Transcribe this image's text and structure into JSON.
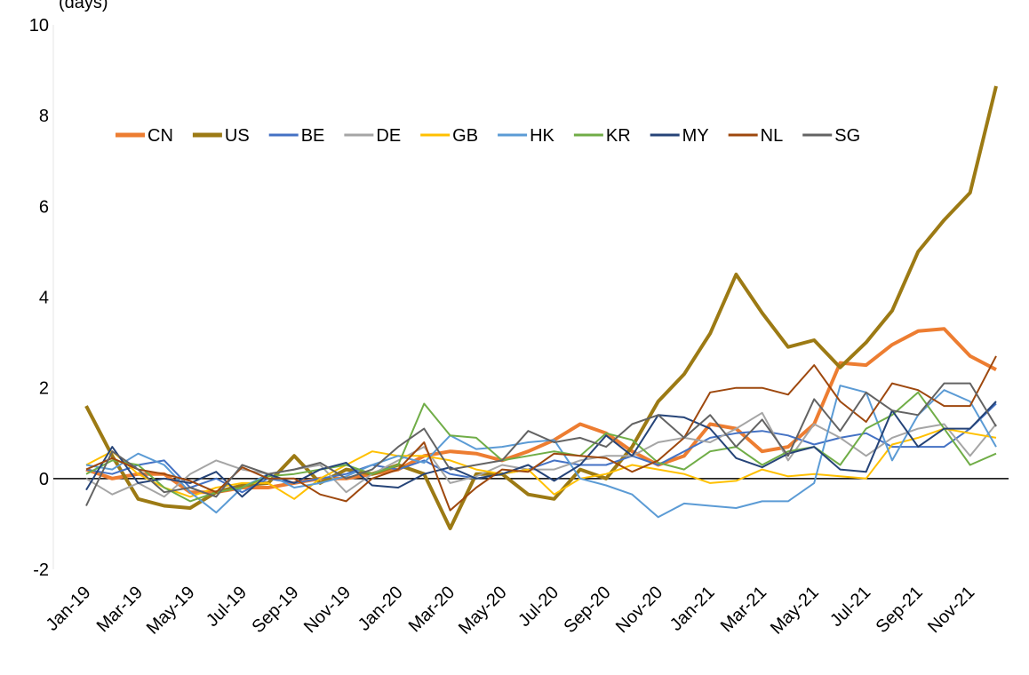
{
  "chart_data": {
    "type": "line",
    "y_label": "(days)",
    "categories": [
      "Jan-19",
      null,
      "Mar-19",
      null,
      "May-19",
      null,
      "Jul-19",
      null,
      "Sep-19",
      null,
      "Nov-19",
      null,
      "Jan-20",
      null,
      "Mar-20",
      null,
      "May-20",
      null,
      "Jul-20",
      null,
      "Sep-20",
      null,
      "Nov-20",
      null,
      "Jan-21",
      null,
      "Mar-21",
      null,
      "May-21",
      null,
      "Jul-21",
      null,
      "Sep-21",
      null,
      "Nov-21",
      null
    ],
    "ylim": [
      -2,
      10
    ],
    "yticks": [
      -2,
      0,
      2,
      4,
      6,
      8,
      10
    ],
    "legend": "top-left",
    "series": [
      {
        "name": "CN",
        "color": "#ed7d31",
        "line_width": 4,
        "values": [
          0.2,
          0.0,
          0.1,
          0.1,
          -0.3,
          -0.3,
          -0.2,
          -0.2,
          -0.1,
          0.0,
          0.0,
          0.1,
          0.2,
          0.5,
          0.6,
          0.55,
          0.4,
          0.6,
          0.85,
          1.2,
          1.0,
          0.6,
          0.3,
          0.5,
          1.2,
          1.1,
          0.6,
          0.7,
          1.2,
          2.55,
          2.5,
          2.95,
          3.25,
          3.3,
          2.7,
          2.4
        ]
      },
      {
        "name": "US",
        "color": "#9c7a14",
        "line_width": 4,
        "values": [
          1.6,
          0.5,
          -0.45,
          -0.6,
          -0.65,
          -0.3,
          -0.15,
          -0.1,
          0.5,
          -0.1,
          0.2,
          0.1,
          0.3,
          0.1,
          -1.1,
          0.1,
          0.1,
          -0.35,
          -0.45,
          0.2,
          0.0,
          0.7,
          1.7,
          2.3,
          3.2,
          4.5,
          3.65,
          2.9,
          3.05,
          2.45,
          3.0,
          3.7,
          5.0,
          5.7,
          6.3,
          8.65
        ]
      },
      {
        "name": "BE",
        "color": "#4472c4",
        "line_width": 2,
        "values": [
          0.2,
          0.1,
          0.3,
          0.4,
          -0.2,
          0.0,
          -0.3,
          0.0,
          -0.1,
          0.0,
          0.1,
          0.3,
          0.2,
          0.4,
          0.1,
          0.0,
          0.1,
          0.2,
          0.4,
          0.3,
          0.3,
          0.5,
          0.3,
          0.6,
          0.9,
          1.0,
          1.05,
          0.95,
          0.75,
          0.9,
          1.0,
          0.7,
          0.7,
          0.7,
          1.1,
          1.65
        ]
      },
      {
        "name": "DE",
        "color": "#a5a5a5",
        "line_width": 2,
        "values": [
          0.0,
          -0.35,
          -0.1,
          -0.4,
          0.1,
          0.4,
          0.2,
          0.1,
          0.2,
          0.3,
          -0.3,
          0.1,
          0.4,
          0.7,
          -0.1,
          0.05,
          0.3,
          0.2,
          0.2,
          0.4,
          0.5,
          0.5,
          0.8,
          0.9,
          0.8,
          1.1,
          1.45,
          0.4,
          1.2,
          0.9,
          0.5,
          0.9,
          1.1,
          1.2,
          0.5,
          1.2
        ]
      },
      {
        "name": "GB",
        "color": "#ffc000",
        "line_width": 2,
        "values": [
          0.3,
          0.6,
          0.1,
          -0.2,
          -0.4,
          -0.2,
          -0.1,
          -0.1,
          -0.45,
          0.0,
          0.3,
          0.6,
          0.5,
          0.5,
          0.4,
          0.2,
          0.1,
          0.2,
          -0.35,
          0.0,
          0.1,
          0.3,
          0.2,
          0.1,
          -0.1,
          -0.05,
          0.2,
          0.05,
          0.1,
          0.05,
          0.0,
          0.75,
          0.9,
          1.1,
          1.0,
          0.9
        ]
      },
      {
        "name": "HK",
        "color": "#5b9bd5",
        "line_width": 2,
        "values": [
          0.3,
          0.2,
          0.55,
          0.3,
          -0.3,
          -0.75,
          -0.2,
          0.1,
          -0.2,
          -0.1,
          0.05,
          0.3,
          0.5,
          0.35,
          0.95,
          0.65,
          0.7,
          0.8,
          0.85,
          0.0,
          -0.15,
          -0.35,
          -0.85,
          -0.55,
          -0.6,
          -0.65,
          -0.5,
          -0.5,
          -0.1,
          2.05,
          1.9,
          0.4,
          1.4,
          1.95,
          1.7,
          0.7
        ]
      },
      {
        "name": "KR",
        "color": "#70ad47",
        "line_width": 2,
        "values": [
          0.1,
          0.4,
          0.3,
          -0.2,
          -0.5,
          -0.3,
          -0.2,
          0.05,
          0.1,
          0.2,
          0.3,
          0.1,
          0.3,
          1.65,
          0.95,
          0.9,
          0.4,
          0.5,
          0.6,
          0.5,
          1.0,
          0.85,
          0.35,
          0.2,
          0.6,
          0.7,
          0.3,
          0.6,
          0.7,
          0.3,
          1.1,
          1.4,
          1.9,
          1.1,
          0.3,
          0.55
        ]
      },
      {
        "name": "MY",
        "color": "#264478",
        "line_width": 2,
        "values": [
          -0.25,
          0.7,
          -0.1,
          0.0,
          -0.1,
          0.15,
          -0.4,
          0.1,
          -0.1,
          0.2,
          0.35,
          -0.15,
          -0.2,
          0.1,
          0.25,
          0.0,
          0.1,
          0.3,
          -0.05,
          0.3,
          0.95,
          0.5,
          1.4,
          1.35,
          1.1,
          0.45,
          0.25,
          0.55,
          0.7,
          0.2,
          0.15,
          1.5,
          0.7,
          1.1,
          1.1,
          1.7
        ]
      },
      {
        "name": "NL",
        "color": "#9e480e",
        "line_width": 2,
        "values": [
          0.2,
          0.45,
          0.2,
          0.1,
          -0.05,
          -0.3,
          0.25,
          0.0,
          0.0,
          -0.35,
          -0.5,
          0.0,
          0.2,
          0.8,
          -0.7,
          -0.2,
          0.2,
          0.15,
          0.55,
          0.5,
          0.45,
          0.15,
          0.4,
          0.9,
          1.9,
          2.0,
          2.0,
          1.85,
          2.5,
          1.7,
          1.25,
          2.1,
          1.95,
          1.6,
          1.6,
          2.7
        ]
      },
      {
        "name": "SG",
        "color": "#636363",
        "line_width": 2,
        "values": [
          -0.6,
          0.6,
          0.2,
          -0.3,
          -0.2,
          -0.4,
          0.3,
          0.1,
          0.2,
          0.35,
          0.0,
          0.2,
          0.7,
          1.1,
          0.2,
          0.3,
          0.4,
          1.05,
          0.8,
          0.9,
          0.7,
          1.2,
          1.4,
          0.9,
          1.4,
          0.7,
          1.3,
          0.5,
          1.75,
          1.05,
          1.9,
          1.5,
          1.4,
          2.1,
          2.1,
          1.15
        ]
      }
    ]
  }
}
